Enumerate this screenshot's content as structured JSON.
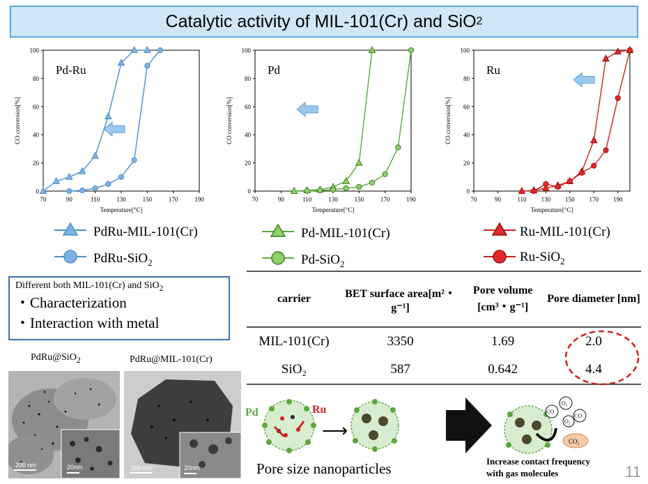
{
  "title": {
    "main": "Catalytic activity of MIL-101(Cr) and SiO",
    "sub": "2"
  },
  "colors": {
    "blue": "#4a8fd0",
    "green": "#5aa83c",
    "red": "#d31f1f",
    "title_bg": "#cfe7f8",
    "title_border": "#5aa9dd"
  },
  "chart_data": [
    {
      "type": "line",
      "label": "Pd-Ru",
      "xlabel": "Temperature[°C]",
      "ylabel": "CO conversion[%]",
      "xlim": [
        70,
        190
      ],
      "ylim": [
        0,
        100
      ],
      "xticks": [
        "70",
        "90",
        "110",
        "130",
        "150",
        "170",
        "190"
      ],
      "yticks": [
        "0",
        "20",
        "40",
        "60",
        "80",
        "100"
      ],
      "series": [
        {
          "name": "PdRu-MIL-101(Cr)",
          "marker": "triangle",
          "x": [
            70,
            80,
            90,
            100,
            110,
            120,
            130,
            140,
            150
          ],
          "y": [
            0,
            7,
            10,
            14,
            25,
            53,
            91,
            100,
            100
          ]
        },
        {
          "name": "PdRu-SiO2",
          "marker": "circle",
          "x": [
            90,
            100,
            110,
            120,
            130,
            140,
            150,
            160
          ],
          "y": [
            0,
            0.5,
            2,
            5,
            10,
            22,
            89,
            100
          ]
        }
      ]
    },
    {
      "type": "line",
      "label": "Pd",
      "xlabel": "Temperature[°C]",
      "ylabel": "CO conversion[%]",
      "xlim": [
        70,
        190
      ],
      "ylim": [
        0,
        100
      ],
      "xticks": [
        "70",
        "90",
        "110",
        "130",
        "150",
        "170",
        "190"
      ],
      "yticks": [
        "0",
        "20",
        "40",
        "60",
        "80",
        "100"
      ],
      "series": [
        {
          "name": "Pd-MIL-101(Cr)",
          "marker": "triangle",
          "x": [
            100,
            110,
            120,
            130,
            140,
            150,
            160
          ],
          "y": [
            0,
            0.5,
            1,
            3,
            7,
            20,
            100
          ]
        },
        {
          "name": "Pd-SiO2",
          "marker": "circle",
          "x": [
            110,
            120,
            130,
            140,
            150,
            160,
            170,
            180,
            190
          ],
          "y": [
            0,
            0.5,
            1,
            2,
            3,
            6,
            12,
            31,
            100
          ]
        }
      ]
    },
    {
      "type": "line",
      "label": "Ru",
      "xlabel": "Temperature[°C]",
      "ylabel": "CO conversion[%]",
      "xlim": [
        70,
        200
      ],
      "ylim": [
        0,
        100
      ],
      "xticks": [
        "70",
        "90",
        "110",
        "130",
        "150",
        "170",
        "190"
      ],
      "yticks": [
        "0",
        "20",
        "40",
        "60",
        "80",
        "100"
      ],
      "series": [
        {
          "name": "Ru-MIL-101(Cr)",
          "marker": "triangle",
          "x": [
            110,
            120,
            130,
            140,
            150,
            160,
            170,
            180,
            190,
            200
          ],
          "y": [
            0,
            0.5,
            2,
            4,
            7,
            14,
            36,
            94,
            99,
            100
          ]
        },
        {
          "name": "Ru-SiO2",
          "marker": "circle",
          "x": [
            120,
            130,
            140,
            150,
            160,
            170,
            180,
            190,
            200
          ],
          "y": [
            0,
            5,
            3,
            7,
            13,
            18,
            29,
            66,
            100
          ]
        }
      ]
    }
  ],
  "legends": {
    "pdru_mil": "PdRu-MIL-101(Cr)",
    "pdru_sio": "PdRu-SiO",
    "pdru_sio_sub": "2",
    "pd_mil": "Pd-MIL-101(Cr)",
    "pd_sio": "Pd-SiO",
    "pd_sio_sub": "2",
    "ru_mil": "Ru-MIL-101(Cr)",
    "ru_sio": "Ru-SiO",
    "ru_sio_sub": "2"
  },
  "diff_box": {
    "header": "Different both MIL-101(Cr) and SiO",
    "header_sub": "2",
    "bullets": [
      "・Characterization",
      "・Interaction with metal"
    ]
  },
  "micrographs": {
    "left_label": "PdRu@SiO",
    "left_label_sub": "2",
    "right_label": "PdRu@MIL-101(Cr)",
    "scale_big": "200 nm",
    "scale_small": "20nm"
  },
  "table": {
    "headers": [
      "carrier",
      "BET surface area[m²・g⁻¹]",
      "Pore volume [cm³・g⁻¹]",
      "Pore diameter [nm]"
    ],
    "rows": [
      [
        "MIL-101(Cr)",
        "3350",
        "1.69",
        "2.0"
      ],
      [
        "SiO₂",
        "587",
        "0.642",
        "4.4"
      ]
    ]
  },
  "schematic": {
    "pd": "Pd",
    "ru": "Ru",
    "arrow": "⟶",
    "pore_label": "Pore size nanoparticles",
    "co": "CO",
    "o2": "O₂",
    "co2": "CO₂",
    "gas_label_1": "Increase contact frequency",
    "gas_label_2": "with gas molecules"
  },
  "page_number": "11"
}
